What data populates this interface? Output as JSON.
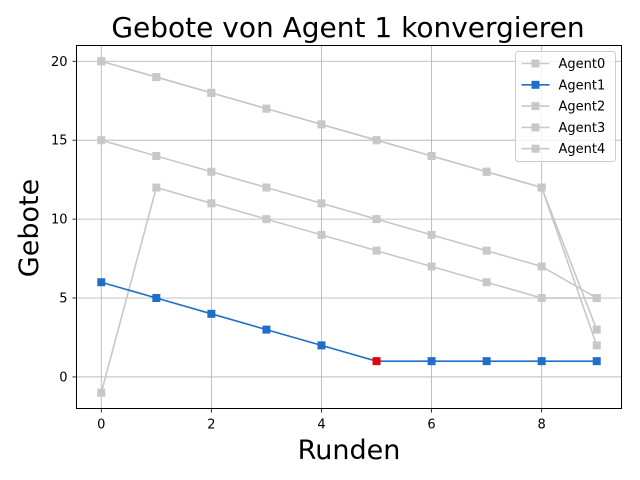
{
  "chart_data": {
    "type": "line",
    "title": "Gebote von Agent 1 konvergieren",
    "xlabel": "Runden",
    "ylabel": "Gebote",
    "xlim": [
      -0.45,
      9.45
    ],
    "ylim": [
      -2,
      21
    ],
    "xticks": [
      0,
      2,
      4,
      6,
      8
    ],
    "yticks": [
      0,
      5,
      10,
      15,
      20
    ],
    "grid": true,
    "legend_position": "top-right",
    "x": [
      0,
      1,
      2,
      3,
      4,
      5,
      6,
      7,
      8,
      9
    ],
    "series": [
      {
        "name": "Agent0",
        "color": "#c8c8c8",
        "values": [
          20,
          19,
          18,
          17,
          16,
          15,
          14,
          13,
          12,
          2
        ]
      },
      {
        "name": "Agent1",
        "color": "#1f6fc6",
        "values": [
          6,
          5,
          4,
          3,
          2,
          1,
          1,
          1,
          1,
          1
        ]
      },
      {
        "name": "Agent2",
        "color": "#c8c8c8",
        "values": [
          15,
          14,
          13,
          12,
          11,
          10,
          9,
          8,
          7,
          5
        ]
      },
      {
        "name": "Agent3",
        "color": "#c8c8c8",
        "values": [
          -1,
          12,
          11,
          10,
          9,
          8,
          7,
          6,
          5,
          5
        ]
      },
      {
        "name": "Agent4",
        "color": "#c8c8c8",
        "values": [
          20,
          19,
          18,
          17,
          16,
          15,
          14,
          13,
          12,
          3
        ]
      }
    ],
    "highlight": {
      "series": "Agent1",
      "x": 5,
      "y": 1,
      "color": "#e8000b"
    }
  }
}
